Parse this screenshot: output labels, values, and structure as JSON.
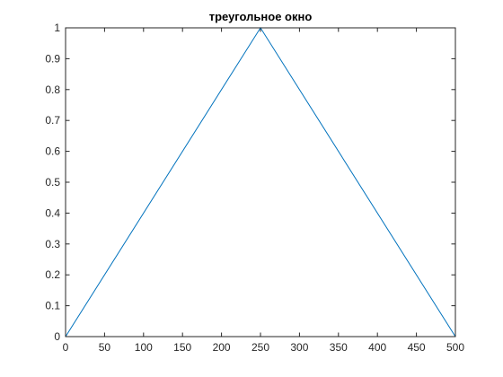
{
  "chart_data": {
    "type": "line",
    "title": "треугольное окно",
    "xlabel": "",
    "ylabel": "",
    "xlim": [
      0,
      500
    ],
    "ylim": [
      0,
      1
    ],
    "grid": false,
    "legend": "none",
    "x_ticks": [
      0,
      50,
      100,
      150,
      200,
      250,
      300,
      350,
      400,
      450,
      500
    ],
    "x_tick_labels": [
      "0",
      "50",
      "100",
      "150",
      "200",
      "250",
      "300",
      "350",
      "400",
      "450",
      "500"
    ],
    "y_ticks": [
      0,
      0.1,
      0.2,
      0.3,
      0.4,
      0.5,
      0.6,
      0.7,
      0.8,
      0.9,
      1
    ],
    "y_tick_labels": [
      "0",
      "0.1",
      "0.2",
      "0.3",
      "0.4",
      "0.5",
      "0.6",
      "0.7",
      "0.8",
      "0.9",
      "1"
    ],
    "series": [
      {
        "x": [
          0,
          250,
          500
        ],
        "y": [
          0,
          1,
          0
        ],
        "color": "#0072bd"
      }
    ]
  }
}
